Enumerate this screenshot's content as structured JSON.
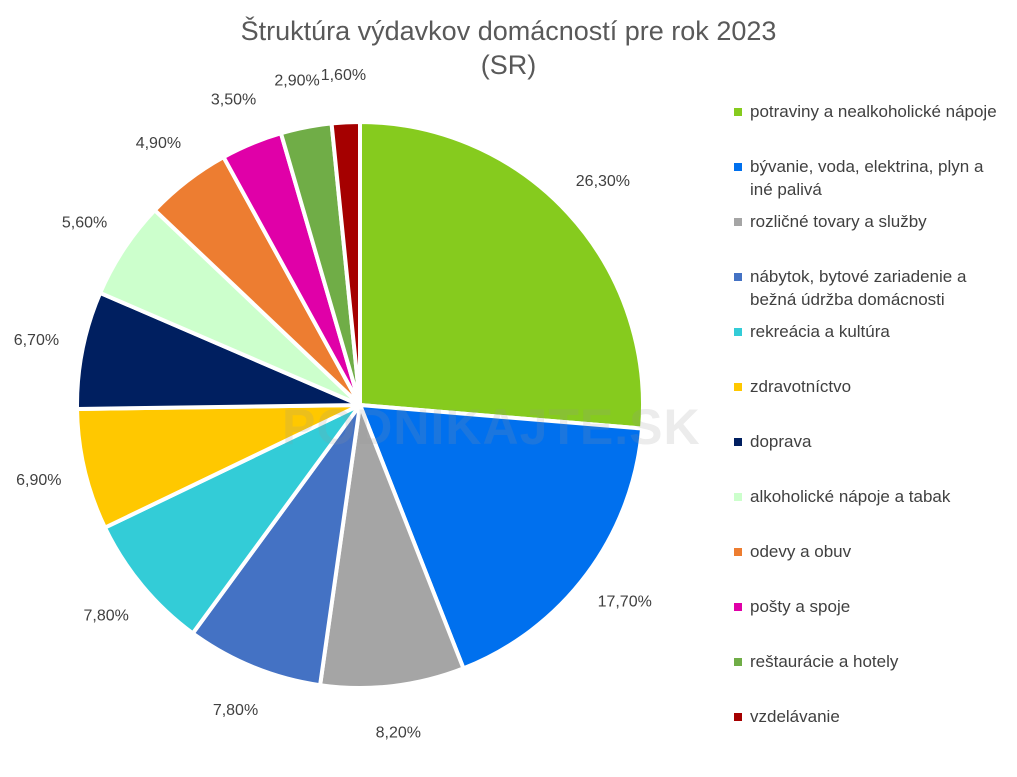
{
  "chart_data": {
    "type": "pie",
    "title": [
      "Štruktúra výdavkov domácností pre rok 2023",
      "(SR)"
    ],
    "legend_position": "right",
    "slices": [
      {
        "label": "potraviny a nealkoholické nápoje",
        "value": 26.3,
        "display": "26,30%",
        "color": "#86CB1E"
      },
      {
        "label": "bývanie, voda, elektrina, plyn a iné palivá",
        "value": 17.7,
        "display": "17,70%",
        "color": "#0070EE"
      },
      {
        "label": "rozličné tovary a služby",
        "value": 8.2,
        "display": "8,20%",
        "color": "#A5A5A5"
      },
      {
        "label": "nábytok, bytové zariadenie a bežná údržba domácnosti",
        "value": 7.8,
        "display": "7,80%",
        "color": "#4472C4"
      },
      {
        "label": "rekreácia a kultúra",
        "value": 7.8,
        "display": "7,80%",
        "color": "#33CCD7"
      },
      {
        "label": "zdravotníctvo",
        "value": 6.9,
        "display": "6,90%",
        "color": "#FFC800"
      },
      {
        "label": "doprava",
        "value": 6.7,
        "display": "6,70%",
        "color": "#001F60"
      },
      {
        "label": "alkoholické nápoje a tabak",
        "value": 5.6,
        "display": "5,60%",
        "color": "#CCFFCC"
      },
      {
        "label": "odevy a obuv",
        "value": 4.9,
        "display": "4,90%",
        "color": "#ED7D31"
      },
      {
        "label": "pošty a spoje",
        "value": 3.5,
        "display": "3,50%",
        "color": "#E000A8"
      },
      {
        "label": "reštaurácie a hotely",
        "value": 2.9,
        "display": "2,90%",
        "color": "#70AD47"
      },
      {
        "label": "vzdelávanie",
        "value": 1.6,
        "display": "1,60%",
        "color": "#A50000"
      }
    ]
  },
  "watermark": "PODNIKAJTE.SK"
}
